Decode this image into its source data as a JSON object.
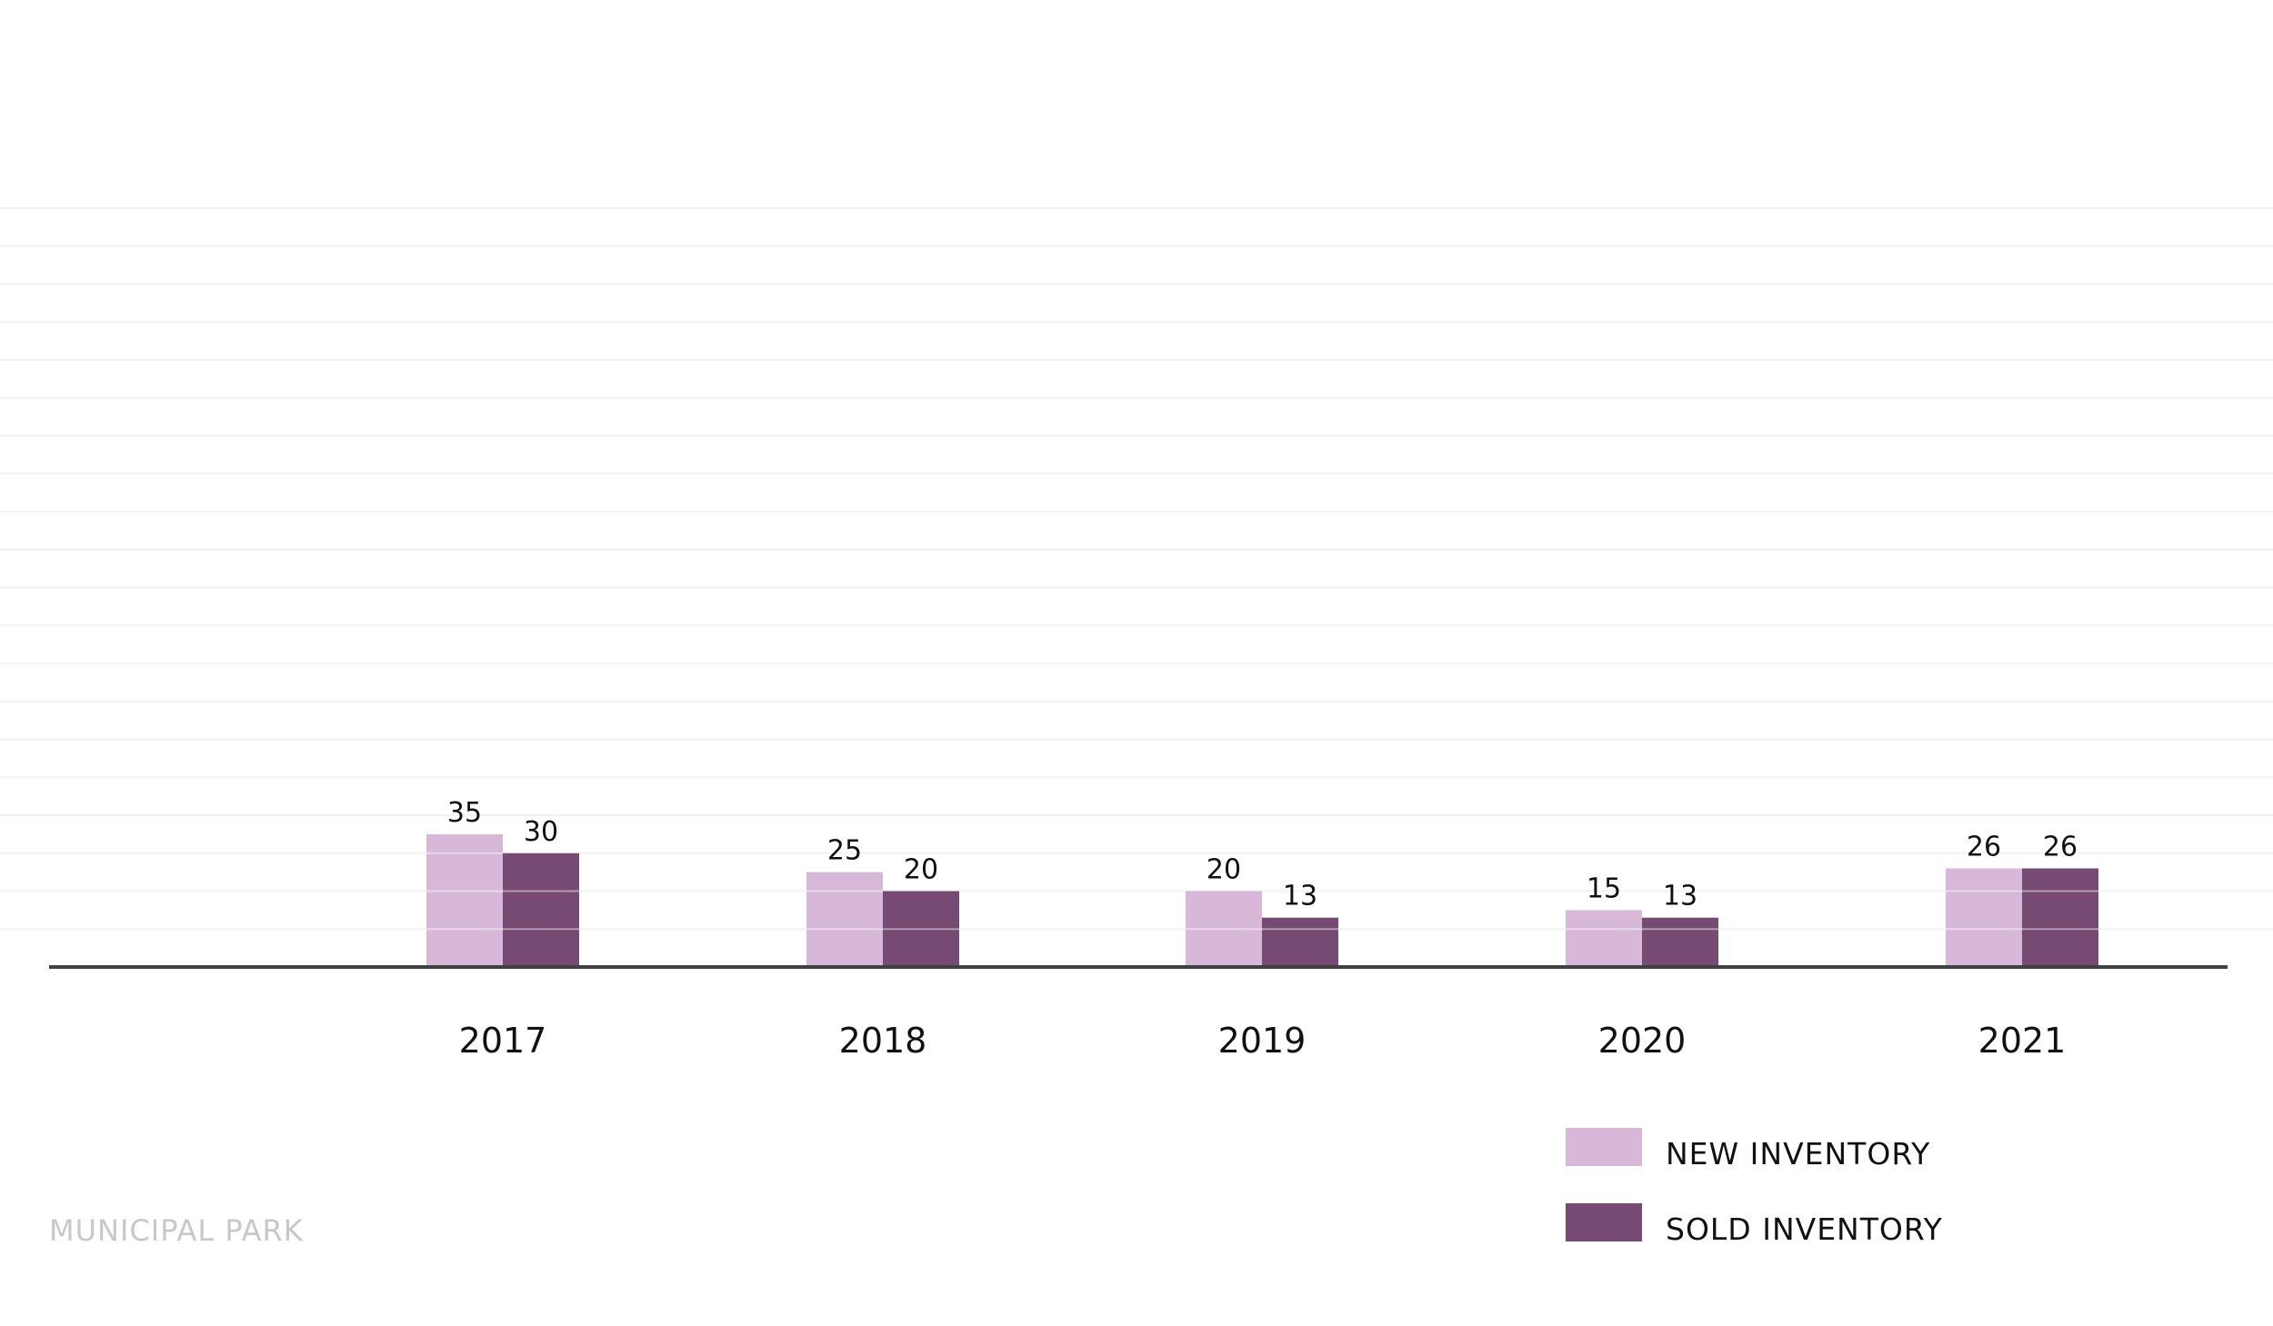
{
  "chart_data": {
    "type": "bar",
    "categories": [
      "2017",
      "2018",
      "2019",
      "2020",
      "2021"
    ],
    "series": [
      {
        "name": "NEW INVENTORY",
        "values": [
          35,
          25,
          20,
          15,
          26
        ],
        "color": "#d7b8d8"
      },
      {
        "name": "SOLD INVENTORY",
        "values": [
          30,
          20,
          13,
          13,
          26
        ],
        "color": "#764a73"
      }
    ],
    "title": "",
    "xlabel": "",
    "ylabel": "",
    "ylim": [
      0,
      200
    ],
    "grid": true,
    "legend_position": "bottom-right",
    "data_labels": true
  },
  "legend": {
    "items": [
      {
        "label": "NEW INVENTORY",
        "color": "#d7b8d8"
      },
      {
        "label": "SOLD INVENTORY",
        "color": "#764a73"
      }
    ]
  },
  "footer": {
    "brand": "MUNICIPAL PARK"
  }
}
